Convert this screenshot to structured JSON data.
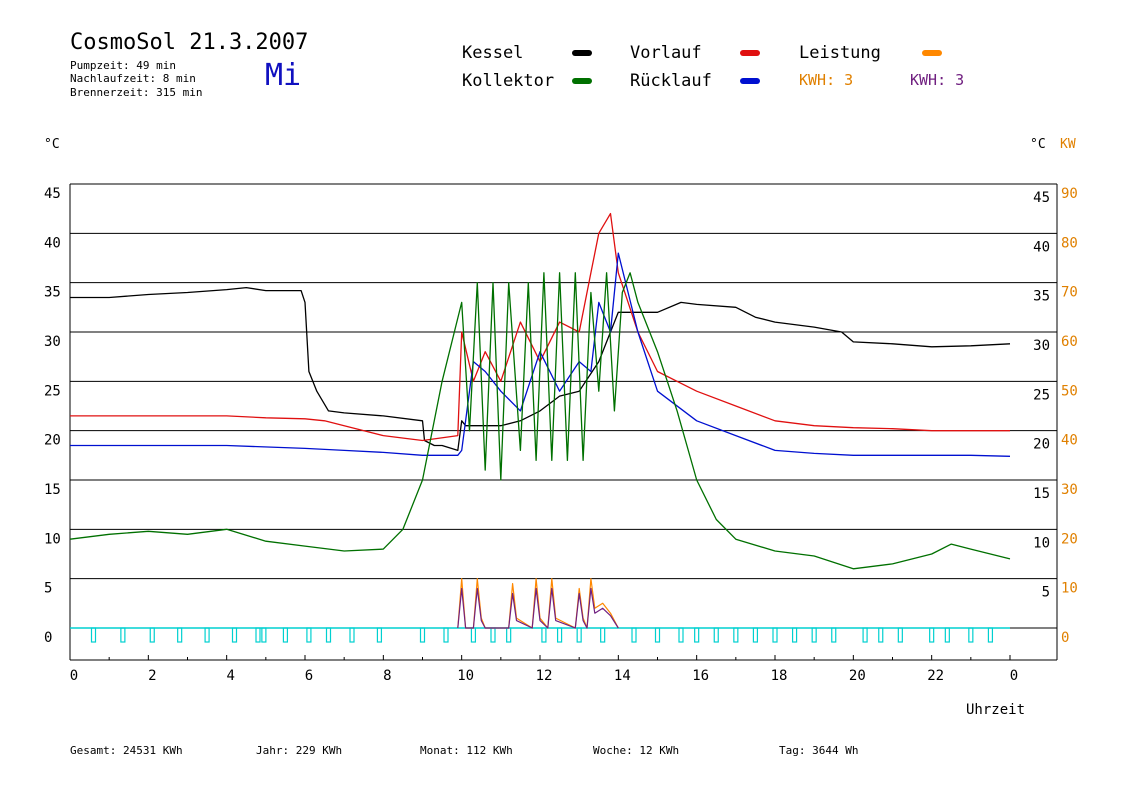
{
  "header": {
    "title": "CosmoSol 21.3.2007",
    "day": "Mi",
    "pumpzeit": "Pumpzeit:      49 min",
    "nachlaufzeit": "Nachlaufzeit:   8 min",
    "brennerzeit": "Brennerzeit:  315 min"
  },
  "legend": {
    "kessel": "Kessel",
    "kollektor": "Kollektor",
    "vorlauf": "Vorlauf",
    "ruecklauf": "Rücklauf",
    "leistung": "Leistung",
    "kwh_orange": "KWH: 3",
    "kwh_purple": "KWH: 3"
  },
  "footer": {
    "gesamt": "Gesamt:  24531 KWh",
    "jahr": "Jahr:    229 KWh",
    "monat": "Monat:    112 KWh",
    "woche": "Woche:     12 KWh",
    "tag": "Tag:    3644 Wh"
  },
  "colors": {
    "kessel": "#000000",
    "kollektor": "#007000",
    "vorlauf": "#e01010",
    "ruecklauf": "#0010d0",
    "leistung": "#ff8800",
    "kwh_purple": "#702080",
    "pump": "#00d0d0",
    "axis_orange": "#e08000"
  },
  "chart_data": {
    "type": "line",
    "ylabel_left": "°C",
    "ylabel_right_1": "°C",
    "ylabel_right_2": "KW",
    "xlabel": "Uhrzeit",
    "ylim": [
      0,
      45
    ],
    "ylim_right_kw": [
      0,
      90
    ],
    "xlim": [
      0,
      24
    ],
    "x_ticks": [
      "0",
      "2",
      "4",
      "6",
      "8",
      "10",
      "12",
      "14",
      "16",
      "18",
      "20",
      "22",
      "0"
    ],
    "y_ticks": [
      0,
      5,
      10,
      15,
      20,
      25,
      30,
      35,
      40,
      45
    ],
    "kw_ticks": [
      0,
      10,
      20,
      30,
      40,
      50,
      60,
      70,
      80,
      90
    ],
    "grid": "horizontal",
    "series": [
      {
        "name": "Kessel",
        "x": [
          0,
          1,
          2,
          3,
          4,
          4.5,
          5,
          5.9,
          6.0,
          6.1,
          6.3,
          6.6,
          7,
          8,
          9,
          9.05,
          9.3,
          9.5,
          9.9,
          10.0,
          10.1,
          10.5,
          11,
          11.5,
          12,
          12.5,
          13,
          13.5,
          14,
          15,
          15.6,
          16,
          17,
          17.5,
          18,
          19,
          19.7,
          20,
          21,
          22,
          23,
          24
        ],
        "values": [
          33.5,
          33.5,
          33.8,
          34,
          34.3,
          34.5,
          34.2,
          34.2,
          33,
          26,
          24,
          22,
          21.8,
          21.5,
          21,
          19,
          18.5,
          18.5,
          18,
          21,
          20.5,
          20.5,
          20.5,
          21,
          22,
          23.5,
          24,
          27,
          32,
          32,
          33,
          32.8,
          32.5,
          31.5,
          31,
          30.5,
          30,
          29,
          28.8,
          28.5,
          28.6,
          28.8
        ]
      },
      {
        "name": "Vorlauf",
        "x": [
          0,
          2,
          4,
          5,
          6,
          6.5,
          7,
          8,
          9,
          9.9,
          10,
          10.3,
          10.6,
          11,
          11.5,
          12,
          12.5,
          13,
          13.3,
          13.5,
          13.8,
          14,
          14.5,
          15,
          16,
          17,
          18,
          19,
          20,
          21,
          22,
          23,
          24
        ],
        "values": [
          21.5,
          21.5,
          21.5,
          21.3,
          21.2,
          21,
          20.5,
          19.5,
          19,
          19.5,
          30,
          25,
          28,
          25,
          31,
          27,
          31,
          30,
          36,
          40,
          42,
          36,
          30,
          26,
          24,
          22.5,
          21,
          20.5,
          20.3,
          20.2,
          20,
          20,
          20
        ]
      },
      {
        "name": "Rücklauf",
        "x": [
          0,
          2,
          4,
          6,
          7,
          8,
          9,
          9.9,
          10,
          10.3,
          10.6,
          11,
          11.5,
          12,
          12.5,
          13,
          13.3,
          13.5,
          13.8,
          14,
          14.5,
          15,
          16,
          17,
          18,
          19,
          20,
          21,
          22,
          23,
          24
        ],
        "values": [
          18.5,
          18.5,
          18.5,
          18.2,
          18,
          17.8,
          17.5,
          17.5,
          18,
          27,
          26,
          24,
          22,
          28,
          24,
          27,
          26,
          33,
          30,
          38,
          30,
          24,
          21,
          19.5,
          18,
          17.7,
          17.5,
          17.5,
          17.5,
          17.5,
          17.4
        ]
      },
      {
        "name": "Kollektor",
        "x": [
          0,
          1,
          2,
          3,
          4,
          5,
          6,
          7,
          8,
          8.5,
          9,
          9.5,
          10,
          10.2,
          10.4,
          10.6,
          10.8,
          11,
          11.2,
          11.5,
          11.7,
          11.9,
          12.1,
          12.3,
          12.5,
          12.7,
          12.9,
          13.1,
          13.3,
          13.5,
          13.7,
          13.9,
          14.1,
          14.3,
          14.5,
          15,
          15.5,
          16,
          16.5,
          17,
          18,
          19,
          20,
          21,
          22,
          22.5,
          23,
          24
        ],
        "values": [
          9,
          9.5,
          9.8,
          9.5,
          10,
          8.8,
          8.3,
          7.8,
          8,
          10,
          15,
          25,
          33,
          20,
          35,
          16,
          35,
          15,
          35,
          18,
          35,
          17,
          36,
          17,
          36,
          17,
          36,
          17,
          34,
          24,
          36,
          22,
          34,
          36,
          33,
          28,
          22,
          15,
          11,
          9,
          7.8,
          7.3,
          6,
          6.5,
          7.5,
          8.5,
          8,
          7
        ]
      },
      {
        "name": "Leistung",
        "unit": "KW",
        "x": [
          9.9,
          10.0,
          10.1,
          10.3,
          10.4,
          10.5,
          10.6,
          11.2,
          11.3,
          11.4,
          11.8,
          11.9,
          12.0,
          12.2,
          12.3,
          12.4,
          12.9,
          13.0,
          13.1,
          13.2,
          13.3,
          13.4,
          13.6,
          13.8,
          14.0
        ],
        "values": [
          0,
          10,
          0,
          0,
          10,
          2,
          0,
          0,
          9,
          2,
          0,
          10,
          2,
          0,
          10,
          2,
          0,
          8,
          2,
          0,
          10,
          4,
          5,
          3,
          0
        ]
      },
      {
        "name": "KWH",
        "unit": "KW",
        "x": [
          9.9,
          10.0,
          10.1,
          10.3,
          10.4,
          10.5,
          10.6,
          11.2,
          11.3,
          11.4,
          11.8,
          11.9,
          12.0,
          12.2,
          12.3,
          12.4,
          12.9,
          13.0,
          13.1,
          13.2,
          13.3,
          13.4,
          13.6,
          13.8,
          14.0
        ],
        "values": [
          0,
          8,
          0,
          0,
          8,
          1.5,
          0,
          0,
          7,
          1.5,
          0,
          8,
          1.5,
          0,
          8,
          1.5,
          0,
          7,
          1.5,
          0,
          8,
          3,
          4,
          2.5,
          0
        ]
      }
    ],
    "pump_pulses": [
      0.6,
      1.35,
      2.1,
      2.8,
      3.5,
      4.2,
      4.8,
      4.95,
      5.5,
      6.1,
      6.6,
      7.2,
      7.9,
      9.0,
      9.6,
      10.3,
      10.8,
      11.2,
      12.1,
      12.5,
      13.0,
      13.6,
      14.4,
      15.0,
      15.6,
      16.0,
      16.5,
      17.0,
      17.5,
      18.0,
      18.5,
      19.0,
      19.5,
      20.3,
      20.7,
      21.2,
      22.0,
      22.4,
      23.0,
      23.5
    ]
  }
}
